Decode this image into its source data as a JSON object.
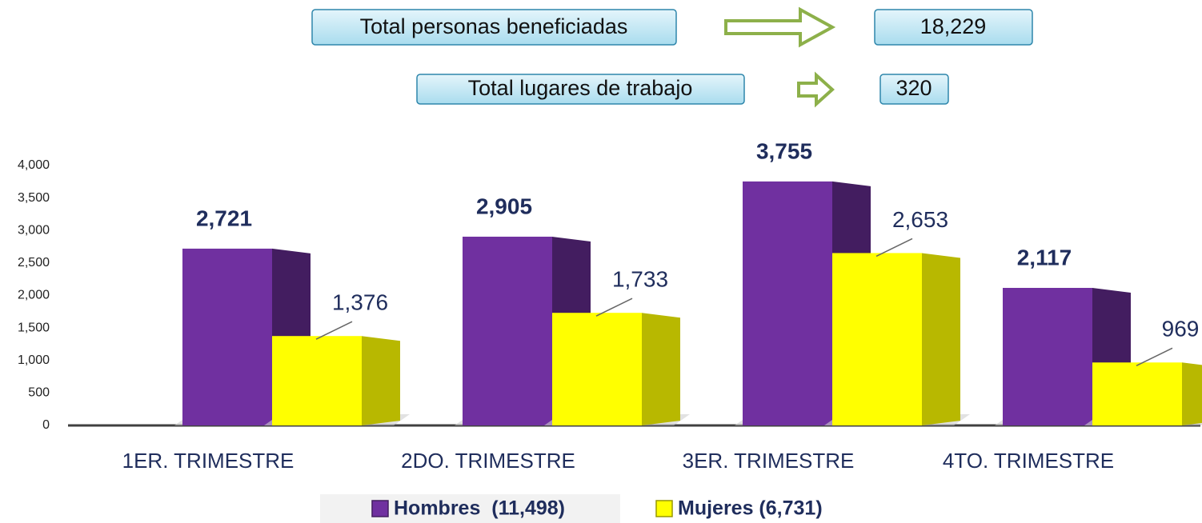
{
  "chart_data": {
    "type": "bar",
    "annotations": [
      {
        "label": "Total personas beneficiadas",
        "value": "18,229"
      },
      {
        "label": "Total lugares de trabajo",
        "value": "320"
      }
    ],
    "categories": [
      "1ER. TRIMESTRE",
      "2DO. TRIMESTRE",
      "3ER. TRIMESTRE",
      "4TO. TRIMESTRE"
    ],
    "series": [
      {
        "name": "Hombres  (11,498)",
        "color": "#7030a0",
        "values": [
          2721,
          2905,
          3755,
          2117
        ],
        "value_labels": [
          "2,721",
          "2,905",
          "3,755",
          "2,117"
        ]
      },
      {
        "name": "Mujeres (6,731)",
        "color": "#ffff00",
        "values": [
          1376,
          1733,
          2653,
          969
        ],
        "value_labels": [
          "1,376",
          "1,733",
          "2,653",
          "969"
        ]
      }
    ],
    "ylim": [
      0,
      4000
    ],
    "yticks": [
      0,
      500,
      {
        "value": 1000,
        "label": "1,000"
      },
      {
        "value": 1500,
        "label": "1,500"
      },
      {
        "value": 2000,
        "label": "2,000"
      },
      {
        "value": 2500,
        "label": "2,500"
      },
      {
        "value": 3000,
        "label": "3,000"
      },
      {
        "value": 3500,
        "label": "3,500"
      },
      {
        "value": 4000,
        "label": "4,000"
      }
    ],
    "grid": false
  }
}
